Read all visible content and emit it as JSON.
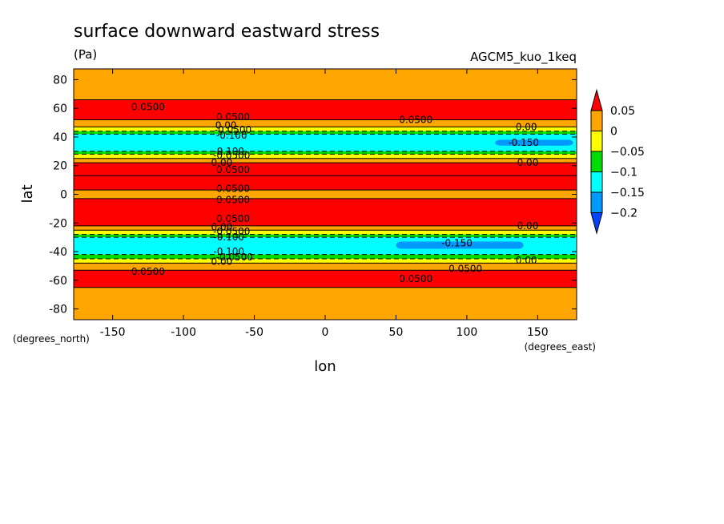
{
  "chart_data": {
    "type": "heatmap",
    "title": "surface downward eastward stress",
    "units": "(Pa)",
    "experiment": "AGCM5_kuo_1keq",
    "xlabel": "lon",
    "ylabel": "lat",
    "x_units": "(degrees_east)",
    "y_units": "(degrees_north)",
    "xlim": [
      -180,
      180
    ],
    "ylim": [
      -90,
      90
    ],
    "x_ticks": [
      -150,
      -100,
      -50,
      0,
      50,
      100,
      150
    ],
    "y_ticks": [
      -80,
      -60,
      -40,
      -20,
      0,
      20,
      40,
      60,
      80
    ],
    "x_tick_labels": [
      "-150",
      "-100",
      "-50",
      "0",
      "50",
      "100",
      "150"
    ],
    "y_tick_labels": [
      "-80",
      "-60",
      "-40",
      "-20",
      "0",
      "20",
      "40",
      "60",
      "80"
    ],
    "colorbar": {
      "levels": [
        0.05,
        0,
        -0.05,
        -0.1,
        -0.15,
        -0.2
      ],
      "labels": [
        "0.05",
        "0",
        "−0.05",
        "−0.1",
        "−0.15",
        "−0.2"
      ],
      "colors": [
        "#ff0000",
        "#ffa500",
        "#ffff00",
        "#00dd00",
        "#00ffff",
        "#0099ff",
        "#0044ff"
      ],
      "extend": "both"
    },
    "bands": [
      {
        "lat_min": 66,
        "lat_max": 90,
        "value": 0.03
      },
      {
        "lat_min": 52,
        "lat_max": 66,
        "value": 0.07
      },
      {
        "lat_min": 47,
        "lat_max": 52,
        "value": 0.02
      },
      {
        "lat_min": 44,
        "lat_max": 47,
        "value": -0.03
      },
      {
        "lat_min": 42,
        "lat_max": 44,
        "value": -0.07
      },
      {
        "lat_min": 30,
        "lat_max": 42,
        "value": -0.13
      },
      {
        "lat_min": 28,
        "lat_max": 30,
        "value": -0.07
      },
      {
        "lat_min": 25,
        "lat_max": 28,
        "value": -0.03
      },
      {
        "lat_min": 22,
        "lat_max": 25,
        "value": 0.02
      },
      {
        "lat_min": 13,
        "lat_max": 22,
        "value": 0.07
      },
      {
        "lat_min": 3,
        "lat_max": 13,
        "value": 0.06
      },
      {
        "lat_min": -3,
        "lat_max": 3,
        "value": 0.03
      },
      {
        "lat_min": -22,
        "lat_max": -3,
        "value": 0.07
      },
      {
        "lat_min": -25,
        "lat_max": -22,
        "value": 0.02
      },
      {
        "lat_min": -28,
        "lat_max": -25,
        "value": -0.03
      },
      {
        "lat_min": -30,
        "lat_max": -28,
        "value": -0.07
      },
      {
        "lat_min": -42,
        "lat_max": -30,
        "value": -0.13
      },
      {
        "lat_min": -45,
        "lat_max": -42,
        "value": -0.07
      },
      {
        "lat_min": -48,
        "lat_max": -45,
        "value": -0.03
      },
      {
        "lat_min": -53,
        "lat_max": -48,
        "value": 0.02
      },
      {
        "lat_min": -65,
        "lat_max": -53,
        "value": 0.07
      },
      {
        "lat_min": -90,
        "lat_max": -65,
        "value": 0.03
      }
    ],
    "dark_blue_patches": [
      {
        "lon_min": 120,
        "lon_max": 175,
        "lat_min": 34,
        "lat_max": 38,
        "value": -0.16
      },
      {
        "lon_min": 50,
        "lon_max": 140,
        "lat_min": -38,
        "lat_max": -33,
        "value": -0.16
      }
    ],
    "contour_labels": [
      {
        "text": "0.0500",
        "lon": -125,
        "lat": 61
      },
      {
        "text": "0.0500",
        "lon": -65,
        "lat": 54
      },
      {
        "text": "0.0500",
        "lon": 64,
        "lat": 52
      },
      {
        "text": "0.00",
        "lon": -70,
        "lat": 48
      },
      {
        "text": "-0.0500",
        "lon": -65,
        "lat": 45
      },
      {
        "text": "-0.100",
        "lon": -66,
        "lat": 41
      },
      {
        "text": "0.00",
        "lon": 142,
        "lat": 47
      },
      {
        "text": "-0.150",
        "lon": 140,
        "lat": 36
      },
      {
        "text": "-0.100",
        "lon": -68,
        "lat": 30
      },
      {
        "text": "-0.0500",
        "lon": -66,
        "lat": 27
      },
      {
        "text": "0.00",
        "lon": -73,
        "lat": 22
      },
      {
        "text": "0.00",
        "lon": 143,
        "lat": 22
      },
      {
        "text": "0.0500",
        "lon": -65,
        "lat": 17
      },
      {
        "text": "0.0500",
        "lon": -65,
        "lat": 4
      },
      {
        "text": "0.0500",
        "lon": -65,
        "lat": -4
      },
      {
        "text": "0.0500",
        "lon": -65,
        "lat": -17
      },
      {
        "text": "0.00",
        "lon": 143,
        "lat": -22
      },
      {
        "text": "0.00",
        "lon": -73,
        "lat": -23
      },
      {
        "text": "-0.0500",
        "lon": -66,
        "lat": -26
      },
      {
        "text": "-0.100",
        "lon": -68,
        "lat": -30
      },
      {
        "text": "-0.150",
        "lon": 93,
        "lat": -34
      },
      {
        "text": "-0.100",
        "lon": -68,
        "lat": -40
      },
      {
        "text": "-0.0500",
        "lon": -64,
        "lat": -44
      },
      {
        "text": "0.00",
        "lon": -73,
        "lat": -47
      },
      {
        "text": "0.00",
        "lon": 142,
        "lat": -46
      },
      {
        "text": "0.0500",
        "lon": -125,
        "lat": -54
      },
      {
        "text": "0.0500",
        "lon": 64,
        "lat": -59
      },
      {
        "text": "0.0500",
        "lon": 99,
        "lat": -52
      }
    ]
  }
}
